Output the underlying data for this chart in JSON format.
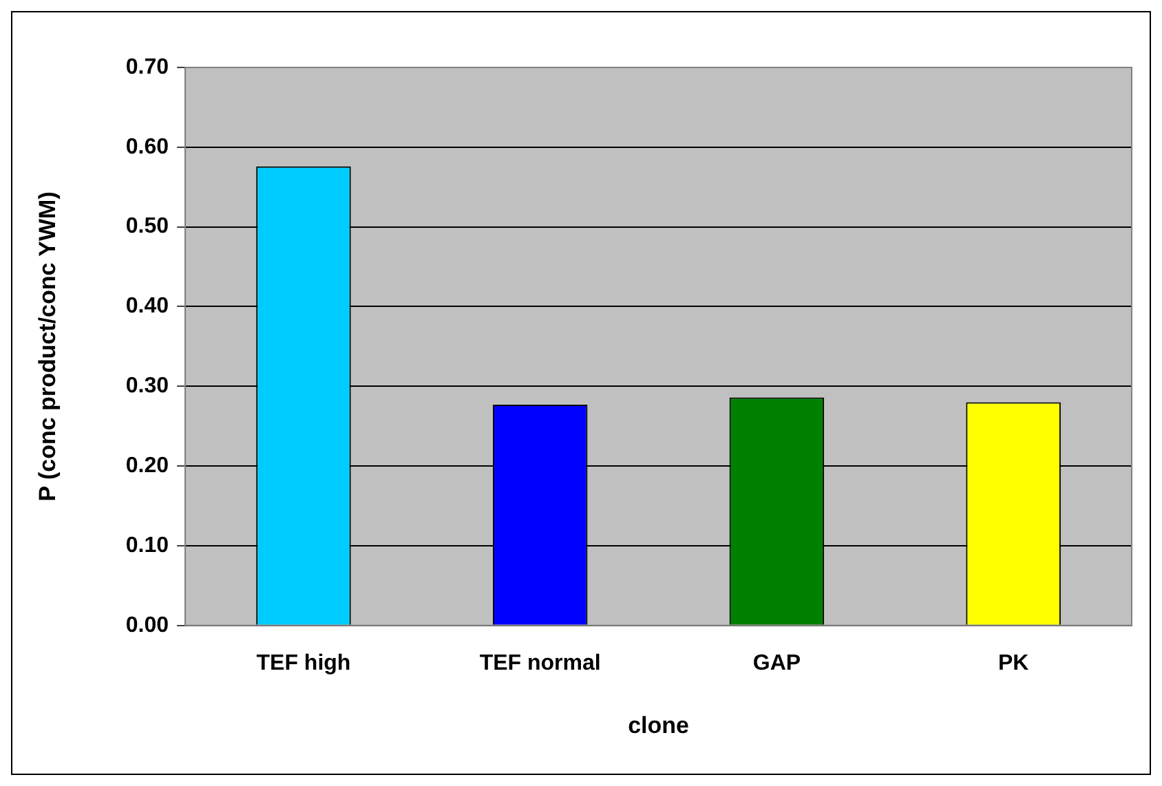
{
  "chart_data": {
    "type": "bar",
    "xlabel": "clone",
    "ylabel": "P (conc product/conc YWM)",
    "categories": [
      "TEF high",
      "TEF normal",
      "GAP",
      "PK"
    ],
    "values": [
      0.576,
      0.277,
      0.286,
      0.28
    ],
    "colors": [
      "#00ccff",
      "#0000ff",
      "#008000",
      "#ffff00"
    ],
    "ylim": [
      0,
      0.7
    ],
    "yticks": [
      {
        "value": 0,
        "label": "0.00"
      },
      {
        "value": 0.1,
        "label": "0.10"
      },
      {
        "value": 0.2,
        "label": "0.20"
      },
      {
        "value": 0.3,
        "label": "0.30"
      },
      {
        "value": 0.4,
        "label": "0.40"
      },
      {
        "value": 0.5,
        "label": "0.50"
      },
      {
        "value": 0.6,
        "label": "0.60"
      },
      {
        "value": 0.7,
        "label": "0.70"
      }
    ],
    "grid": "y",
    "legend": false
  }
}
